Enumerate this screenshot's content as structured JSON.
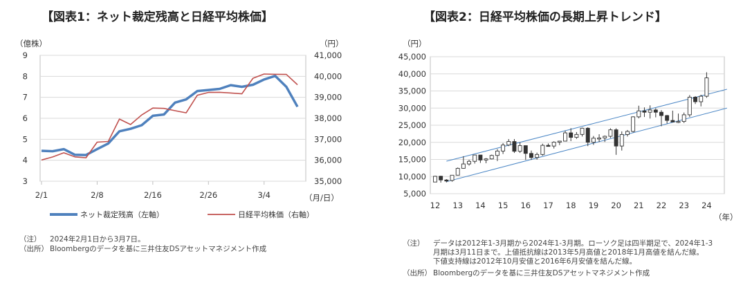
{
  "chart1": {
    "title": "【図表1：ネット裁定残高と日経平均株価】",
    "unit_left": "（億株）",
    "unit_right": "（円）",
    "unit_x": "（月/日）",
    "note_tag": "（注）",
    "note_text": "2024年2月1日から3月7日。",
    "source_tag": "（出所）",
    "source_text": "Bloombergのデータを基に三井住友DSアセットマネジメント作成",
    "chart_data": {
      "type": "line",
      "x_ticks": [
        "2/1",
        "2/8",
        "2/16",
        "2/26",
        "3/4"
      ],
      "y_left_ticks": [
        "3",
        "4",
        "5",
        "6",
        "7",
        "8",
        "9"
      ],
      "y_left_lim": [
        3,
        9
      ],
      "y_right_ticks": [
        "35,000",
        "36,000",
        "37,000",
        "38,000",
        "39,000",
        "40,000",
        "41,000"
      ],
      "y_right_lim": [
        35000,
        41000
      ],
      "grid": true,
      "legend_position": "bottom",
      "series": [
        {
          "name": "ネット裁定残高（左軸）",
          "axis": "left",
          "color": "#4f81bd",
          "x": [
            "2/1",
            "2/2",
            "2/5",
            "2/6",
            "2/7",
            "2/8",
            "2/9",
            "2/13",
            "2/14",
            "2/15",
            "2/16",
            "2/19",
            "2/20",
            "2/21",
            "2/22",
            "2/26",
            "2/27",
            "2/28",
            "2/29",
            "3/1",
            "3/4",
            "3/5",
            "3/6",
            "3/7"
          ],
          "values": [
            4.45,
            4.43,
            4.53,
            4.26,
            4.25,
            4.53,
            4.8,
            5.38,
            5.5,
            5.67,
            6.12,
            6.18,
            6.75,
            6.9,
            7.3,
            7.35,
            7.4,
            7.58,
            7.5,
            7.6,
            7.85,
            8.02,
            7.5,
            6.55
          ]
        },
        {
          "name": "日経平均株価（右軸）",
          "axis": "right",
          "color": "#c0504d",
          "x": [
            "2/1",
            "2/2",
            "2/5",
            "2/6",
            "2/7",
            "2/8",
            "2/9",
            "2/13",
            "2/14",
            "2/15",
            "2/16",
            "2/19",
            "2/20",
            "2/21",
            "2/22",
            "2/26",
            "2/27",
            "2/28",
            "2/29",
            "3/1",
            "3/4",
            "3/5",
            "3/6",
            "3/7"
          ],
          "values": [
            36011,
            36158,
            36354,
            36160,
            36119,
            36863,
            36897,
            37963,
            37703,
            38157,
            38487,
            38470,
            38364,
            38262,
            39098,
            39233,
            39239,
            39208,
            39166,
            39910,
            40109,
            40098,
            40090,
            39598
          ]
        }
      ]
    }
  },
  "chart2": {
    "title": "【図表2：日経平均株価の長期上昇トレンド】",
    "unit_y": "（円）",
    "unit_x": "（年）",
    "note_tag": "（注）",
    "note_lines": [
      "データは2012年1-3月期から2024年1-3月期。ローソク足は四半期足で、2024年1-3",
      "月期は3月11日まで。上値抵抗線は2013年5月高値と2018年1月高値を結んだ線。",
      "下値支持線は2012年10月安値と2016年6月安値を結んだ線。"
    ],
    "source_tag": "（出所）",
    "source_text": "Bloombergのデータを基に三井住友DSアセットマネジメント作成",
    "chart_data": {
      "type": "candlestick",
      "x_ticks": [
        "12",
        "13",
        "14",
        "15",
        "16",
        "17",
        "18",
        "19",
        "20",
        "21",
        "22",
        "23",
        "24"
      ],
      "y_ticks": [
        "5,000",
        "10,000",
        "15,000",
        "20,000",
        "25,000",
        "30,000",
        "35,000",
        "40,000",
        "45,000"
      ],
      "ylim": [
        5000,
        45000
      ],
      "grid": true,
      "trend_lines": [
        {
          "from": [
            2012.5,
            14500
          ],
          "to": [
            2024.9,
            35500
          ]
        },
        {
          "from": [
            2012.5,
            8500
          ],
          "to": [
            2024.9,
            30000
          ]
        }
      ],
      "candles": [
        {
          "t": "2012Q1",
          "o": 8400,
          "h": 10255,
          "l": 8350,
          "c": 10083
        },
        {
          "t": "2012Q2",
          "o": 10100,
          "h": 10250,
          "l": 8240,
          "c": 9007
        },
        {
          "t": "2012Q3",
          "o": 9000,
          "h": 9250,
          "l": 8300,
          "c": 8870
        },
        {
          "t": "2012Q4",
          "o": 8870,
          "h": 10400,
          "l": 8500,
          "c": 10395
        },
        {
          "t": "2013Q1",
          "o": 10400,
          "h": 12650,
          "l": 10300,
          "c": 12398
        },
        {
          "t": "2013Q2",
          "o": 12400,
          "h": 15940,
          "l": 12300,
          "c": 13677
        },
        {
          "t": "2013Q3",
          "o": 13677,
          "h": 14900,
          "l": 13200,
          "c": 14456
        },
        {
          "t": "2013Q4",
          "o": 14456,
          "h": 16320,
          "l": 13800,
          "c": 16291
        },
        {
          "t": "2014Q1",
          "o": 16291,
          "h": 16300,
          "l": 13990,
          "c": 14828
        },
        {
          "t": "2014Q2",
          "o": 14828,
          "h": 15400,
          "l": 13900,
          "c": 15162
        },
        {
          "t": "2014Q3",
          "o": 15162,
          "h": 16400,
          "l": 15000,
          "c": 16174
        },
        {
          "t": "2014Q4",
          "o": 16174,
          "h": 18030,
          "l": 14530,
          "c": 17451
        },
        {
          "t": "2015Q1",
          "o": 17451,
          "h": 19780,
          "l": 16590,
          "c": 19207
        },
        {
          "t": "2015Q2",
          "o": 19207,
          "h": 20950,
          "l": 18900,
          "c": 20236
        },
        {
          "t": "2015Q3",
          "o": 20236,
          "h": 20950,
          "l": 16900,
          "c": 17388
        },
        {
          "t": "2015Q4",
          "o": 17388,
          "h": 20010,
          "l": 16900,
          "c": 19034
        },
        {
          "t": "2016Q1",
          "o": 19034,
          "h": 19100,
          "l": 14860,
          "c": 16759
        },
        {
          "t": "2016Q2",
          "o": 16759,
          "h": 17600,
          "l": 14860,
          "c": 15576
        },
        {
          "t": "2016Q3",
          "o": 15576,
          "h": 17000,
          "l": 14950,
          "c": 16450
        },
        {
          "t": "2016Q4",
          "o": 16450,
          "h": 19600,
          "l": 16100,
          "c": 19114
        },
        {
          "t": "2017Q1",
          "o": 19114,
          "h": 19670,
          "l": 18800,
          "c": 18909
        },
        {
          "t": "2017Q2",
          "o": 18909,
          "h": 20300,
          "l": 18200,
          "c": 20033
        },
        {
          "t": "2017Q3",
          "o": 20033,
          "h": 20400,
          "l": 19200,
          "c": 20356
        },
        {
          "t": "2017Q4",
          "o": 20356,
          "h": 23400,
          "l": 20300,
          "c": 22765
        },
        {
          "t": "2018Q1",
          "o": 22765,
          "h": 24130,
          "l": 20350,
          "c": 21454
        },
        {
          "t": "2018Q2",
          "o": 21454,
          "h": 23000,
          "l": 21000,
          "c": 22305
        },
        {
          "t": "2018Q3",
          "o": 22305,
          "h": 24300,
          "l": 21700,
          "c": 24120
        },
        {
          "t": "2018Q4",
          "o": 24120,
          "h": 24400,
          "l": 18900,
          "c": 20015
        },
        {
          "t": "2019Q1",
          "o": 20015,
          "h": 21850,
          "l": 19240,
          "c": 21206
        },
        {
          "t": "2019Q2",
          "o": 21206,
          "h": 22360,
          "l": 20100,
          "c": 21276
        },
        {
          "t": "2019Q3",
          "o": 21276,
          "h": 22000,
          "l": 20100,
          "c": 21756
        },
        {
          "t": "2019Q4",
          "o": 21756,
          "h": 24100,
          "l": 21300,
          "c": 23657
        },
        {
          "t": "2020Q1",
          "o": 23657,
          "h": 24100,
          "l": 16350,
          "c": 18917
        },
        {
          "t": "2020Q2",
          "o": 18917,
          "h": 23200,
          "l": 17600,
          "c": 22288
        },
        {
          "t": "2020Q3",
          "o": 22288,
          "h": 23600,
          "l": 21700,
          "c": 23185
        },
        {
          "t": "2020Q4",
          "o": 23185,
          "h": 27600,
          "l": 22900,
          "c": 27444
        },
        {
          "t": "2021Q1",
          "o": 27444,
          "h": 30700,
          "l": 27000,
          "c": 29179
        },
        {
          "t": "2021Q2",
          "o": 29179,
          "h": 30200,
          "l": 27400,
          "c": 28792
        },
        {
          "t": "2021Q3",
          "o": 28792,
          "h": 30800,
          "l": 26950,
          "c": 29453
        },
        {
          "t": "2021Q4",
          "o": 29453,
          "h": 29950,
          "l": 27300,
          "c": 28792
        },
        {
          "t": "2022Q1",
          "o": 28792,
          "h": 29400,
          "l": 24700,
          "c": 27821
        },
        {
          "t": "2022Q2",
          "o": 27821,
          "h": 28000,
          "l": 25500,
          "c": 26393
        },
        {
          "t": "2022Q3",
          "o": 26393,
          "h": 29250,
          "l": 25900,
          "c": 25937
        },
        {
          "t": "2022Q4",
          "o": 25937,
          "h": 28400,
          "l": 25600,
          "c": 26095
        },
        {
          "t": "2023Q1",
          "o": 26095,
          "h": 28700,
          "l": 25650,
          "c": 28041
        },
        {
          "t": "2023Q2",
          "o": 28041,
          "h": 33800,
          "l": 27400,
          "c": 33189
        },
        {
          "t": "2023Q3",
          "o": 33189,
          "h": 33500,
          "l": 31200,
          "c": 31858
        },
        {
          "t": "2023Q4",
          "o": 31858,
          "h": 33900,
          "l": 30500,
          "c": 33464
        },
        {
          "t": "2024Q1",
          "o": 33464,
          "h": 40470,
          "l": 33000,
          "c": 38820
        }
      ]
    }
  }
}
